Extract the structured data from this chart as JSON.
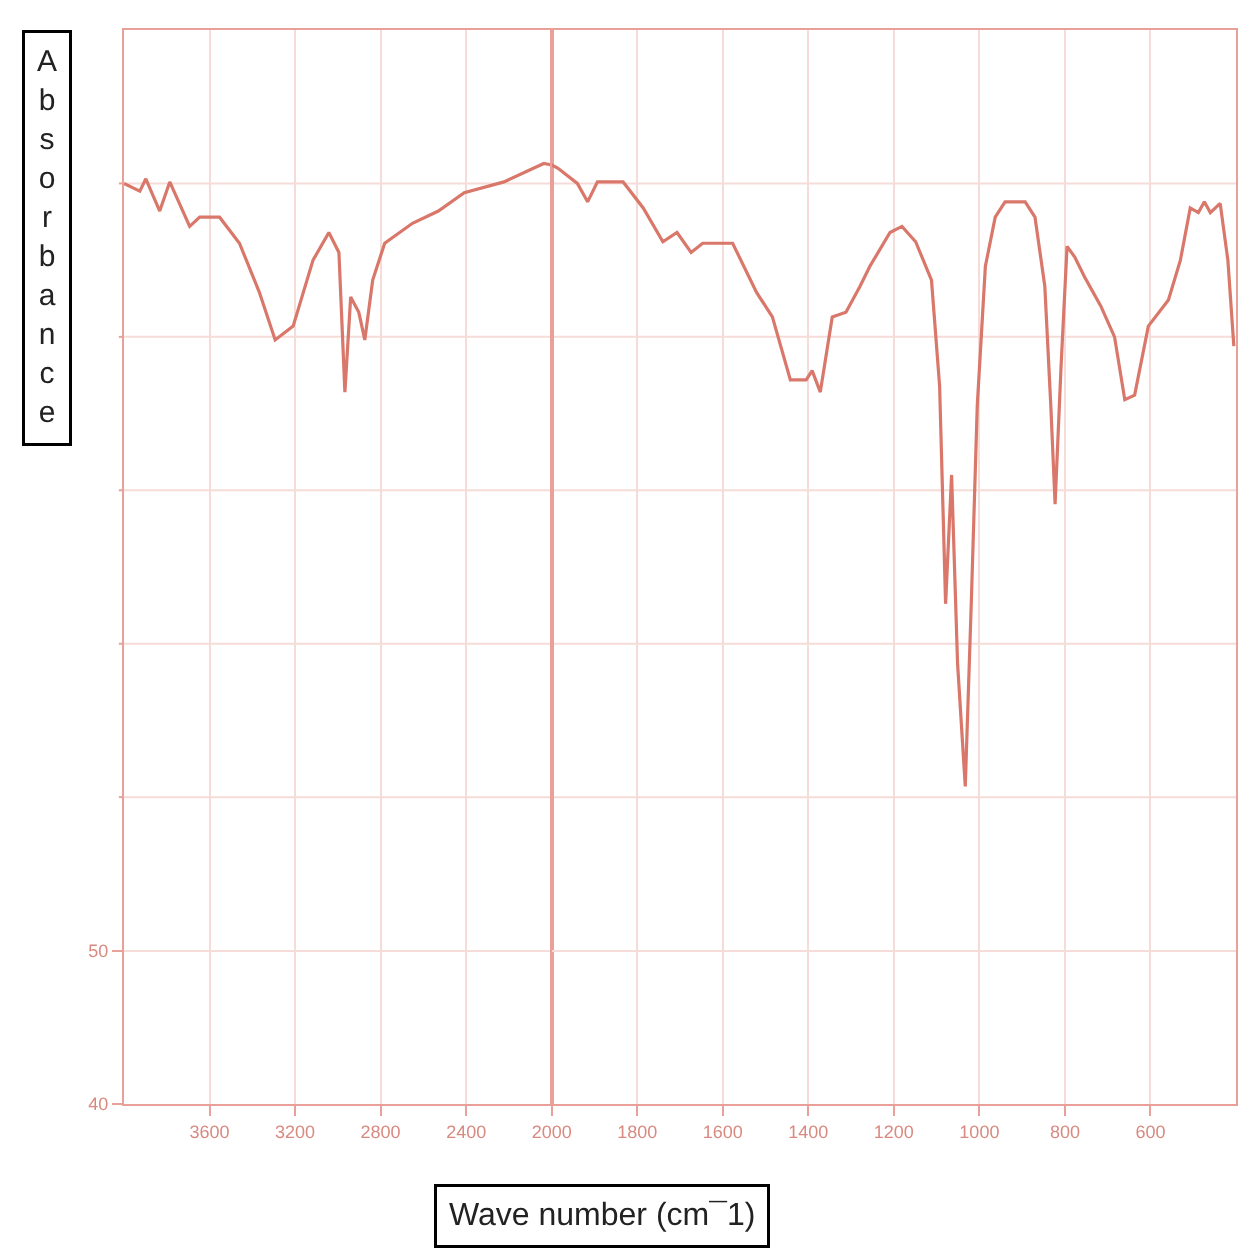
{
  "chart_data": [
    {
      "type": "line",
      "ylabel": "Absorbance",
      "x": [
        4000,
        3926,
        3898,
        3833,
        3786,
        3693,
        3646,
        3553,
        3460,
        3367,
        3293,
        3209,
        3116,
        3042,
        2995,
        2967,
        2940,
        2902,
        2874,
        2837,
        2781,
        2651,
        2530,
        2409,
        2223,
        2037,
        2000
      ],
      "series": [
        {
          "color": "#d9776a",
          "values": [
            100,
            99.5,
            100.3,
            98.2,
            100.1,
            97.2,
            97.8,
            97.8,
            96.1,
            92.9,
            89.8,
            90.7,
            95.0,
            96.8,
            95.5,
            86.4,
            92.6,
            91.6,
            89.8,
            93.7,
            96.1,
            97.4,
            98.2,
            99.4,
            100.1,
            101.3,
            101.2
          ]
        }
      ],
      "xlim": [
        4000,
        2000
      ],
      "xticks": [
        3600,
        3200,
        2800,
        2400
      ],
      "ylim": [
        40,
        110
      ],
      "yticks": [
        40,
        50,
        {
          "value": 60,
          "label": null
        },
        {
          "value": 70,
          "label": null
        },
        {
          "value": 80,
          "label": null
        },
        {
          "value": 90,
          "label": null
        },
        {
          "value": 100,
          "label": null
        }
      ],
      "grid": true,
      "marker": "none",
      "line_style": "solid"
    },
    {
      "type": "line",
      "xlabel": "Wave number (cm¯1)",
      "x": [
        2000,
        1986,
        1940,
        1916,
        1893,
        1833,
        1786,
        1740,
        1707,
        1674,
        1647,
        1577,
        1521,
        1484,
        1442,
        1405,
        1391,
        1372,
        1344,
        1312,
        1279,
        1256,
        1209,
        1181,
        1149,
        1112,
        1093,
        1079,
        1065,
        1051,
        1033,
        1019,
        1005,
        986,
        963,
        940,
        893,
        870,
        847,
        833,
        823,
        809,
        795,
        777,
        754,
        716,
        684,
        660,
        637,
        605,
        558,
        530,
        507,
        488,
        474,
        460,
        437,
        419,
        405
      ],
      "series": [
        {
          "color": "#d9776a",
          "values": [
            101.2,
            101.0,
            100,
            98.8,
            100.1,
            100.1,
            98.4,
            96.2,
            96.8,
            95.5,
            96.1,
            96.1,
            92.9,
            91.3,
            87.2,
            87.2,
            87.8,
            86.4,
            91.3,
            91.6,
            93.3,
            94.6,
            96.8,
            97.2,
            96.2,
            93.7,
            86.8,
            72.6,
            81.0,
            68.7,
            60.7,
            72.6,
            85.5,
            94.6,
            97.8,
            98.8,
            98.8,
            97.8,
            93.3,
            85.5,
            79.1,
            88.1,
            95.9,
            95.2,
            93.9,
            92.0,
            90.0,
            85.9,
            86.2,
            90.7,
            92.4,
            95.0,
            98.4,
            98.1,
            98.8,
            98.1,
            98.7,
            95.0,
            89.4
          ]
        }
      ],
      "xlim": [
        2000,
        400
      ],
      "xticks": [
        2000,
        1800,
        1600,
        1400,
        1200,
        1000,
        800,
        600
      ],
      "ylim": [
        40,
        110
      ],
      "yticks": [
        40,
        50,
        {
          "value": 60,
          "label": null
        },
        {
          "value": 70,
          "label": null
        },
        {
          "value": 80,
          "label": null
        },
        {
          "value": 90,
          "label": null
        },
        {
          "value": 100,
          "label": null
        }
      ],
      "tick_labels": "x",
      "grid": true,
      "marker": "none",
      "line_style": "solid"
    }
  ]
}
